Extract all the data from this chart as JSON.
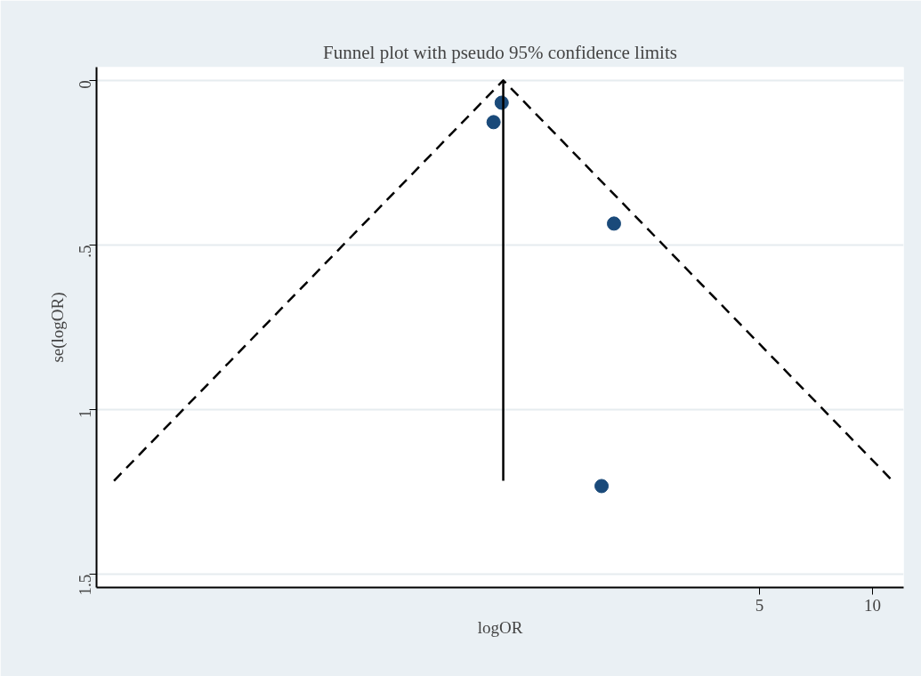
{
  "chart_data": {
    "type": "scatter",
    "title": "Funnel plot with pseudo 95% confidence limits",
    "xlabel": "logOR",
    "ylabel": "se(logOR)",
    "log": "x",
    "xlim": [
      0.086,
      12.1
    ],
    "ylim": [
      1.54,
      -0.04
    ],
    "xticks": [
      5,
      10
    ],
    "yticks": [
      {
        "value": 0,
        "label": "0"
      },
      {
        "value": 0.5,
        "label": ".5"
      },
      {
        "value": 1,
        "label": "1"
      },
      {
        "value": 1.5,
        "label": "1.5"
      }
    ],
    "grid": "y",
    "series": [
      {
        "marker": "circle",
        "color": "#1a4a7a",
        "x": [
          1.03,
          0.98,
          2.05,
          1.9
        ],
        "values": [
          0.068,
          0.127,
          0.435,
          1.232
        ]
      },
      {
        "type": "line",
        "line_style": "dashed",
        "marker": "none",
        "color": "#000000",
        "x": [
          0.0957,
          1.04,
          11.3
        ],
        "values": [
          1.216,
          0,
          1.216
        ]
      },
      {
        "type": "line",
        "line_style": "solid",
        "marker": "none",
        "color": "#000000",
        "x": [
          1.04,
          1.04
        ],
        "values": [
          0,
          1.216
        ]
      }
    ]
  }
}
